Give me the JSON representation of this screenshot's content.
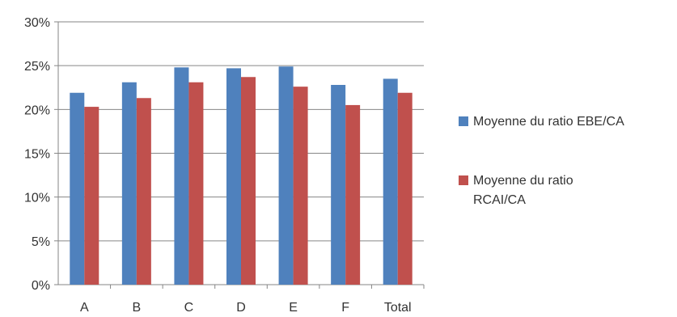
{
  "chart_data": {
    "type": "bar",
    "categories": [
      "A",
      "B",
      "C",
      "D",
      "E",
      "F",
      "Total"
    ],
    "series": [
      {
        "name": "Moyenne du ratio EBE/CA",
        "values": [
          21.9,
          23.1,
          24.8,
          24.7,
          24.9,
          22.8,
          23.5
        ],
        "color": "#4f81bd"
      },
      {
        "name": "Moyenne du ratio RCAI/CA",
        "name_lines": [
          "Moyenne du ratio",
          "RCAI/CA"
        ],
        "values": [
          20.3,
          21.3,
          23.1,
          23.7,
          22.6,
          20.5,
          21.9
        ],
        "color": "#c0504d"
      }
    ],
    "yticks": [
      "0%",
      "5%",
      "10%",
      "15%",
      "20%",
      "25%",
      "30%"
    ],
    "ylim": [
      0,
      30
    ],
    "grid": true,
    "legend": "right",
    "title": "",
    "xlabel": "",
    "ylabel": ""
  }
}
